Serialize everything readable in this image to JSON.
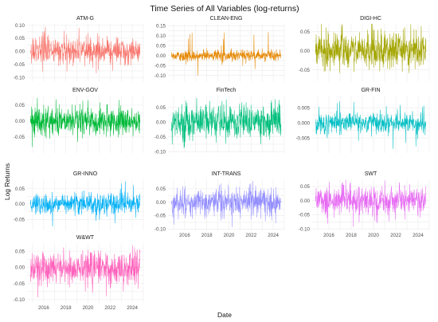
{
  "chart_data": {
    "type": "line",
    "title": "Time Series of All Variables (log-returns)",
    "xlabel": "Date",
    "ylabel": "Log Returns",
    "layout": "facet-grid 3 columns, free scales",
    "grid": true,
    "x_ticks": [
      "2016",
      "2018",
      "2020",
      "2022",
      "2024"
    ],
    "panels": [
      {
        "name": "ATM-G",
        "color": "#F8766D",
        "x_start": 2014.8,
        "x_end": 2024.7,
        "xlim": [
          2014.5,
          2025.0
        ],
        "ylim": [
          -0.115,
          0.105
        ],
        "yticks": [
          -0.1,
          -0.05,
          0.0,
          0.05,
          0.1
        ],
        "ytick_labels": [
          "-0.10",
          "-0.05",
          "0.00",
          "0.05",
          "0.10"
        ],
        "vol": 0.018,
        "spike_max": 0.09,
        "spike_min": -0.1
      },
      {
        "name": "CLEAN-ENG",
        "color": "#E58700",
        "x_start": 2014.8,
        "x_end": 2024.7,
        "xlim": [
          2014.5,
          2025.0
        ],
        "ylim": [
          -0.13,
          0.16
        ],
        "yticks": [
          -0.1,
          -0.05,
          0.0,
          0.05,
          0.1,
          0.15
        ],
        "ytick_labels": [
          "-0.10",
          "-0.05",
          "0.00",
          "0.05",
          "0.10",
          "0.15"
        ],
        "vol": 0.01,
        "spike_max": 0.15,
        "spike_min": -0.12
      },
      {
        "name": "DIGI-HC",
        "color": "#A3A500",
        "x_start": 2014.8,
        "x_end": 2024.7,
        "xlim": [
          2014.5,
          2025.0
        ],
        "ylim": [
          -0.08,
          0.07
        ],
        "yticks": [
          -0.05,
          0.0,
          0.05
        ],
        "ytick_labels": [
          "-0.05",
          "0.00",
          "0.05"
        ],
        "vol": 0.017,
        "spike_max": 0.07,
        "spike_min": -0.075
      },
      {
        "name": "ENV-GOV",
        "color": "#00BA38",
        "x_start": 2014.8,
        "x_end": 2024.7,
        "xlim": [
          2014.5,
          2025.0
        ],
        "ylim": [
          -0.1,
          0.08
        ],
        "yticks": [
          -0.05,
          0.0,
          0.05
        ],
        "ytick_labels": [
          "-0.05",
          "0.00",
          "0.05"
        ],
        "vol": 0.016,
        "spike_max": 0.075,
        "spike_min": -0.09
      },
      {
        "name": "FinTech",
        "color": "#00BF7D",
        "x_start": 2014.8,
        "x_end": 2024.7,
        "xlim": [
          2014.5,
          2025.0
        ],
        "ylim": [
          -0.105,
          0.09
        ],
        "yticks": [
          -0.1,
          -0.05,
          0.0,
          0.05
        ],
        "ytick_labels": [
          "-0.10",
          "-0.05",
          "0.00",
          "0.05"
        ],
        "vol": 0.02,
        "spike_max": 0.085,
        "spike_min": -0.1
      },
      {
        "name": "GR-FIN",
        "color": "#00BFC4",
        "x_start": 2014.8,
        "x_end": 2024.7,
        "xlim": [
          2014.5,
          2025.0
        ],
        "ylim": [
          -0.01,
          0.009
        ],
        "yticks": [
          -0.005,
          0.0,
          0.005
        ],
        "ytick_labels": [
          "-0.005",
          "0.000",
          "0.005"
        ],
        "vol": 0.0012,
        "spike_max": 0.008,
        "spike_min": -0.009
      },
      {
        "name": "GR-INNO",
        "color": "#00B0F6",
        "x_start": 2014.8,
        "x_end": 2024.7,
        "xlim": [
          2014.5,
          2025.0
        ],
        "ylim": [
          -0.085,
          0.08
        ],
        "yticks": [
          -0.05,
          0.0,
          0.05
        ],
        "ytick_labels": [
          "-0.05",
          "0.00",
          "0.05"
        ],
        "vol": 0.012,
        "spike_max": 0.075,
        "spike_min": -0.08
      },
      {
        "name": "INT-TRANS",
        "color": "#9590FF",
        "x_start": 2014.8,
        "x_end": 2024.7,
        "xlim": [
          2014.5,
          2025.0
        ],
        "ylim": [
          -0.105,
          0.085
        ],
        "yticks": [
          -0.1,
          -0.05,
          0.0,
          0.05
        ],
        "ytick_labels": [
          "-0.10",
          "-0.05",
          "0.00",
          "0.05"
        ],
        "vol": 0.02,
        "spike_max": 0.08,
        "spike_min": -0.095
      },
      {
        "name": "SWT",
        "color": "#E76BF3",
        "x_start": 2014.8,
        "x_end": 2024.7,
        "xlim": [
          2014.5,
          2025.0
        ],
        "ylim": [
          -0.105,
          0.075
        ],
        "yticks": [
          -0.1,
          -0.05,
          0.0,
          0.05
        ],
        "ytick_labels": [
          "-0.10",
          "-0.05",
          "0.00",
          "0.05"
        ],
        "vol": 0.018,
        "spike_max": 0.07,
        "spike_min": -0.1
      },
      {
        "name": "W&WT",
        "color": "#FF62BC",
        "x_start": 2014.8,
        "x_end": 2024.7,
        "xlim": [
          2014.5,
          2025.0
        ],
        "ylim": [
          -0.11,
          0.075
        ],
        "yticks": [
          -0.1,
          -0.05,
          0.0,
          0.05
        ],
        "ytick_labels": [
          "-0.10",
          "-0.05",
          "0.00",
          "0.05"
        ],
        "vol": 0.018,
        "spike_max": 0.07,
        "spike_min": -0.1
      }
    ]
  }
}
